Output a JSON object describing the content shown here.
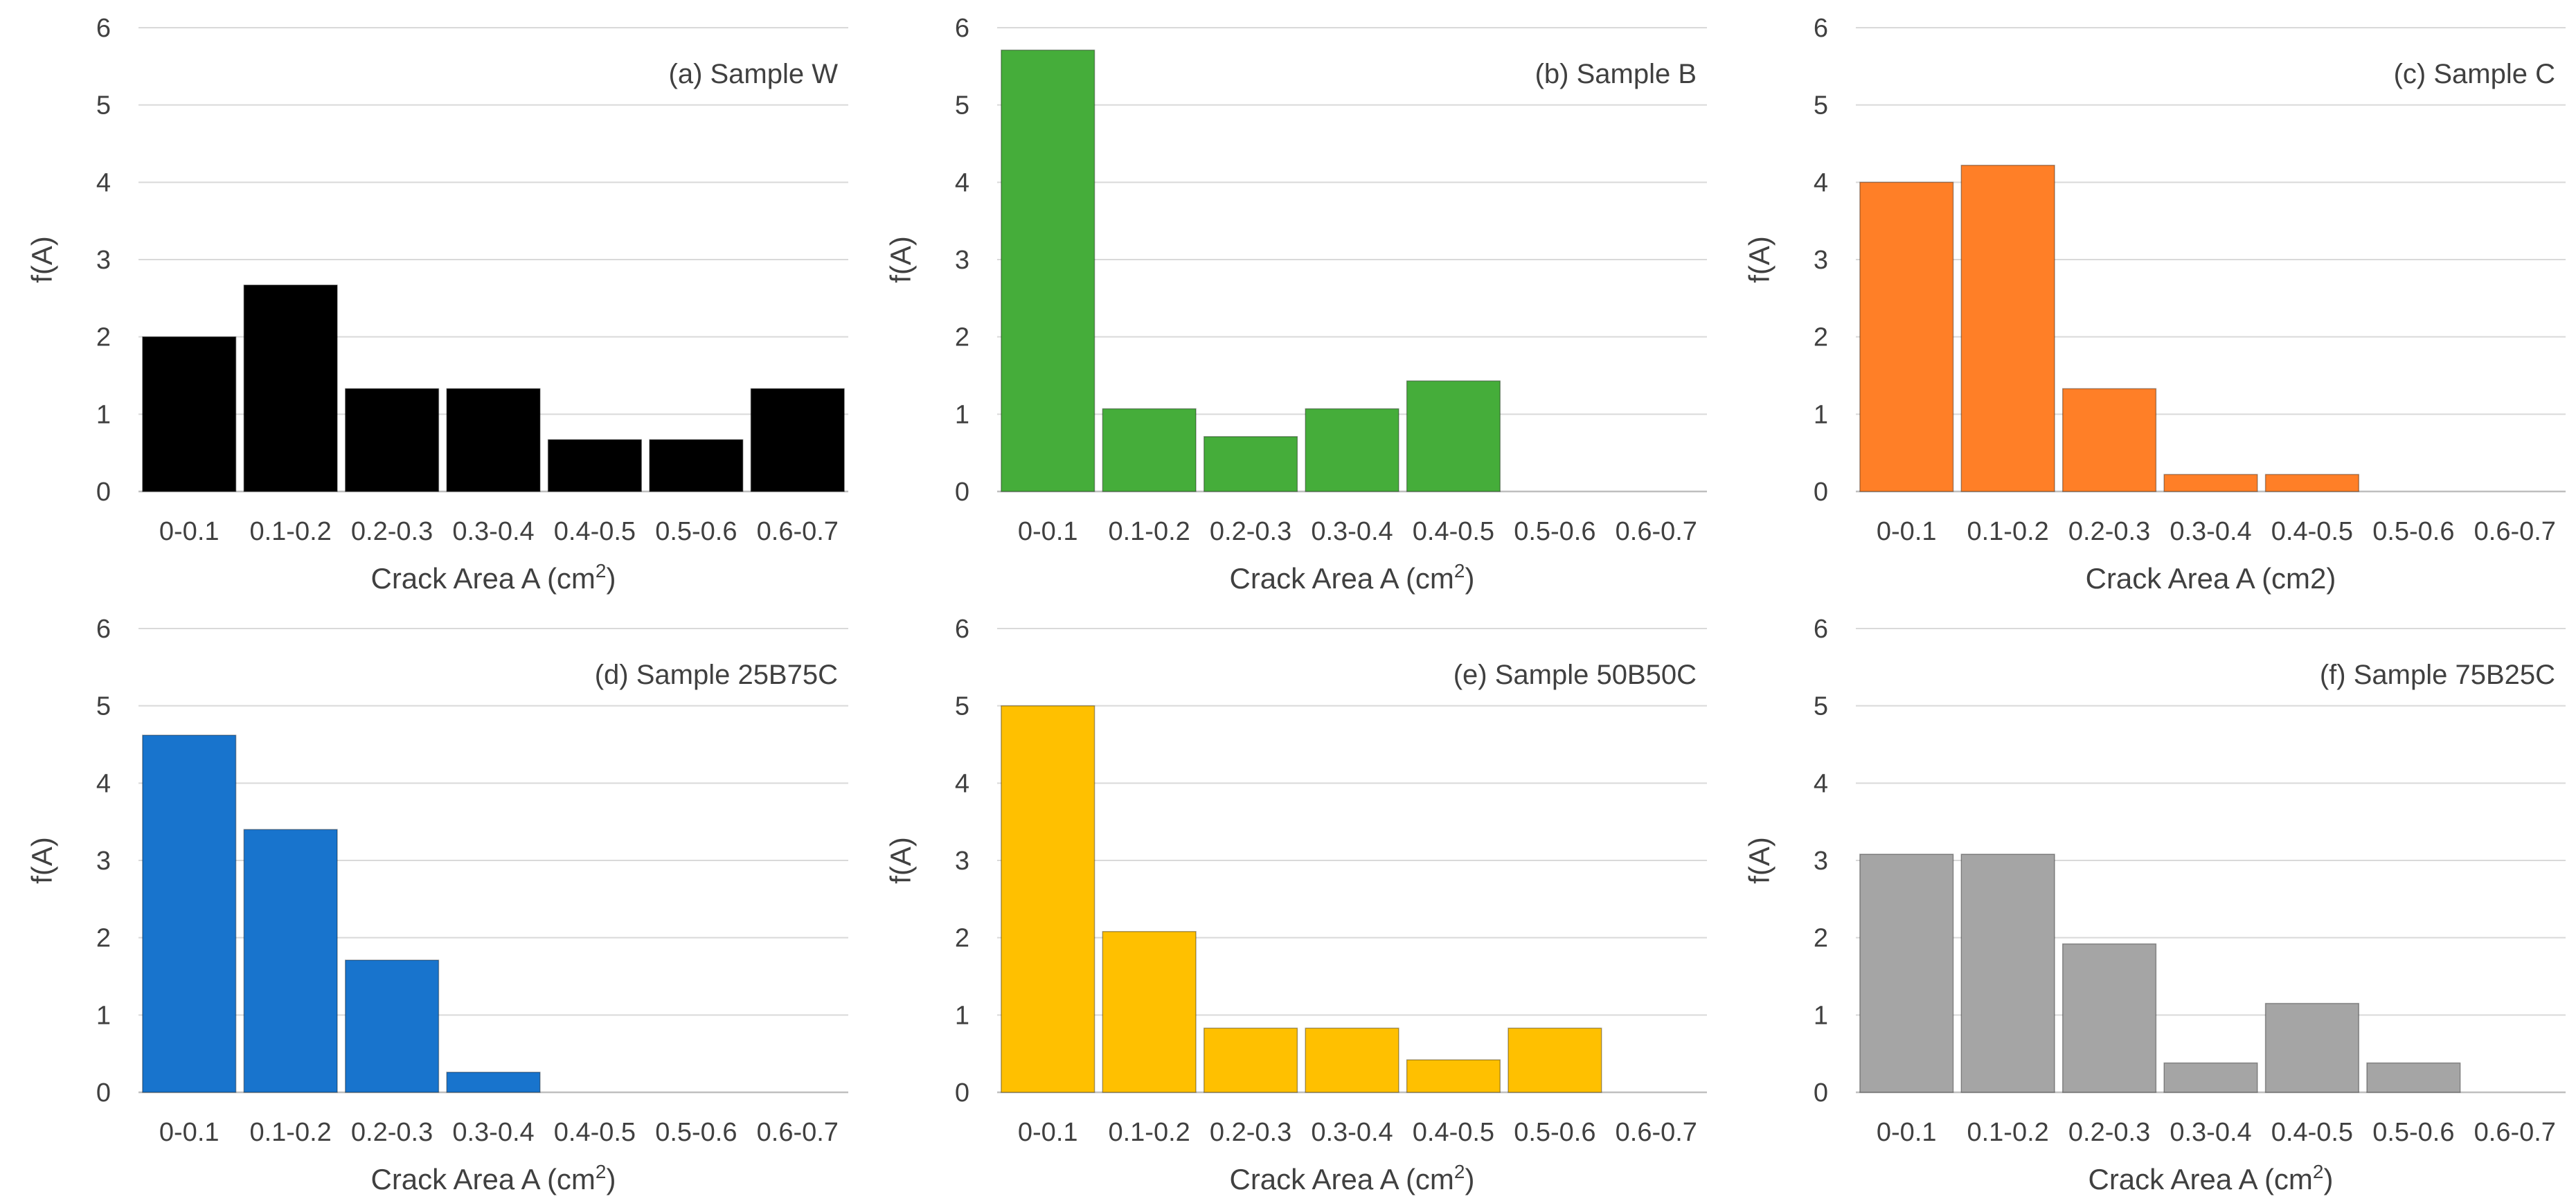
{
  "chart_data": [
    {
      "type": "bar",
      "title": "(a) Sample W",
      "categories": [
        "0-0.1",
        "0.1-0.2",
        "0.2-0.3",
        "0.3-0.4",
        "0.4-0.5",
        "0.5-0.6",
        "0.6-0.7"
      ],
      "values": [
        2.0,
        2.67,
        1.33,
        1.33,
        0.67,
        0.67,
        1.33
      ],
      "xlabel": "Crack Area A (cm",
      "xlabel_sup": "2",
      "xlabel_tail": ")",
      "ylabel": "f(A)",
      "ylim": [
        0,
        6
      ],
      "yticks": [
        0,
        1,
        2,
        3,
        4,
        5,
        6
      ],
      "color": "#000000",
      "grid": true
    },
    {
      "type": "bar",
      "title": "(b) Sample B",
      "categories": [
        "0-0.1",
        "0.1-0.2",
        "0.2-0.3",
        "0.3-0.4",
        "0.4-0.5",
        "0.5-0.6",
        "0.6-0.7"
      ],
      "values": [
        5.71,
        1.07,
        0.71,
        1.07,
        1.43,
        0,
        0
      ],
      "xlabel": "Crack Area A (cm",
      "xlabel_sup": "2",
      "xlabel_tail": ")",
      "ylabel": "f(A)",
      "ylim": [
        0,
        6
      ],
      "yticks": [
        0,
        1,
        2,
        3,
        4,
        5,
        6
      ],
      "color": "#45ad3a",
      "grid": true
    },
    {
      "type": "bar",
      "title": "(c) Sample C",
      "categories": [
        "0-0.1",
        "0.1-0.2",
        "0.2-0.3",
        "0.3-0.4",
        "0.4-0.5",
        "0.5-0.6",
        "0.6-0.7"
      ],
      "values": [
        4.0,
        4.22,
        1.33,
        0.22,
        0.22,
        0,
        0
      ],
      "xlabel": "Crack Area A (cm2)",
      "xlabel_sup": "",
      "xlabel_tail": "",
      "ylabel": "f(A)",
      "ylim": [
        0,
        6
      ],
      "yticks": [
        0,
        1,
        2,
        3,
        4,
        5,
        6
      ],
      "color": "#ff7f27",
      "grid": true
    },
    {
      "type": "bar",
      "title": "(d) Sample 25B75C",
      "categories": [
        "0-0.1",
        "0.1-0.2",
        "0.2-0.3",
        "0.3-0.4",
        "0.4-0.5",
        "0.5-0.6",
        "0.6-0.7"
      ],
      "values": [
        4.62,
        3.4,
        1.71,
        0.26,
        0,
        0,
        0
      ],
      "xlabel": "Crack Area A (cm",
      "xlabel_sup": "2",
      "xlabel_tail": ")",
      "ylabel": "f(A)",
      "ylim": [
        0,
        6
      ],
      "yticks": [
        0,
        1,
        2,
        3,
        4,
        5,
        6
      ],
      "color": "#1874cd",
      "grid": true
    },
    {
      "type": "bar",
      "title": "(e) Sample 50B50C",
      "categories": [
        "0-0.1",
        "0.1-0.2",
        "0.2-0.3",
        "0.3-0.4",
        "0.4-0.5",
        "0.5-0.6",
        "0.6-0.7"
      ],
      "values": [
        5.0,
        2.08,
        0.83,
        0.83,
        0.42,
        0.83,
        0
      ],
      "xlabel": "Crack Area A (cm",
      "xlabel_sup": "2",
      "xlabel_tail": ")",
      "ylabel": "f(A)",
      "ylim": [
        0,
        6
      ],
      "yticks": [
        0,
        1,
        2,
        3,
        4,
        5,
        6
      ],
      "color": "#ffc000",
      "grid": true
    },
    {
      "type": "bar",
      "title": "(f) Sample 75B25C",
      "categories": [
        "0-0.1",
        "0.1-0.2",
        "0.2-0.3",
        "0.3-0.4",
        "0.4-0.5",
        "0.5-0.6",
        "0.6-0.7"
      ],
      "values": [
        3.08,
        3.08,
        1.92,
        0.38,
        1.15,
        0.38,
        0
      ],
      "xlabel": "Crack Area A (cm",
      "xlabel_sup": "2",
      "xlabel_tail": ")",
      "ylabel": "f(A)",
      "ylim": [
        0,
        6
      ],
      "yticks": [
        0,
        1,
        2,
        3,
        4,
        5,
        6
      ],
      "color": "#a5a5a5",
      "grid": true
    }
  ]
}
